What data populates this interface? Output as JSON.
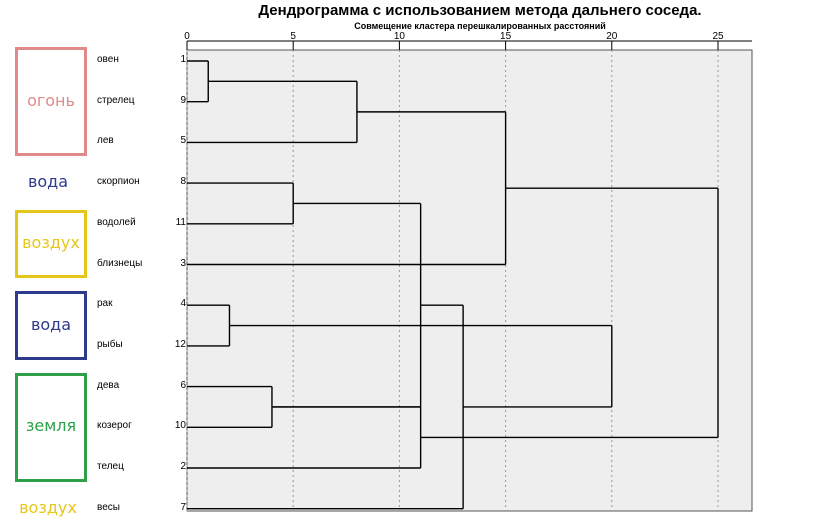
{
  "header": {
    "title": "Дендрограмма с использованием метода дальнего соседа.",
    "subtitle": "Совмещение кластера перешкалированных расстояний"
  },
  "groups": [
    {
      "label": "огонь",
      "color": "#e08a8a",
      "rows": [
        0,
        2
      ],
      "box": true
    },
    {
      "label": "вода",
      "color": "#2e3a8c",
      "rows": [
        3,
        3
      ],
      "box": false
    },
    {
      "label": "воздух",
      "color": "#e6c61a",
      "rows": [
        4,
        5
      ],
      "box": true
    },
    {
      "label": "вода",
      "color": "#2e3a8c",
      "rows": [
        6,
        7
      ],
      "box": true
    },
    {
      "label": "земля",
      "color": "#2ea04a",
      "rows": [
        8,
        10
      ],
      "box": true
    },
    {
      "label": "воздух",
      "color": "#e6c61a",
      "rows": [
        11,
        11
      ],
      "box": false
    }
  ],
  "chart_data": {
    "type": "dendrogram",
    "title": "Дендрограмма с использованием метода дальнего соседа.",
    "xlabel": "Совмещение кластера перешкалированных расстояний",
    "xlim": [
      0,
      25
    ],
    "x_ticks": [
      "0",
      "5",
      "10",
      "15",
      "20",
      "25"
    ],
    "leaves": [
      {
        "label": "овен",
        "case": "1"
      },
      {
        "label": "стрелец",
        "case": "9"
      },
      {
        "label": "лев",
        "case": "5"
      },
      {
        "label": "скорпион",
        "case": "8"
      },
      {
        "label": "водолей",
        "case": "11"
      },
      {
        "label": "близнецы",
        "case": "3"
      },
      {
        "label": "рак",
        "case": "4"
      },
      {
        "label": "рыбы",
        "case": "12"
      },
      {
        "label": "дева",
        "case": "6"
      },
      {
        "label": "козерог",
        "case": "10"
      },
      {
        "label": "телец",
        "case": "2"
      },
      {
        "label": "весы",
        "case": "7"
      }
    ],
    "merges": [
      {
        "a": 0,
        "b": 1,
        "distance": 1
      },
      {
        "a": 6,
        "b": 7,
        "distance": 2
      },
      {
        "a": 8,
        "b": 9,
        "distance": 4
      },
      {
        "a": 3,
        "b": 4,
        "distance": 5
      },
      {
        "a": 12,
        "b": 2,
        "distance": 8
      },
      {
        "a": 15,
        "b": 14,
        "distance": 11
      },
      {
        "a": 14,
        "b": 10,
        "distance": 11
      },
      {
        "a": 17,
        "b": 11,
        "distance": 13
      },
      {
        "a": 16,
        "b": 5,
        "distance": 15
      },
      {
        "a": 19,
        "b": 13,
        "distance": 20
      },
      {
        "a": 20,
        "b": 18,
        "distance": 25
      }
    ]
  }
}
